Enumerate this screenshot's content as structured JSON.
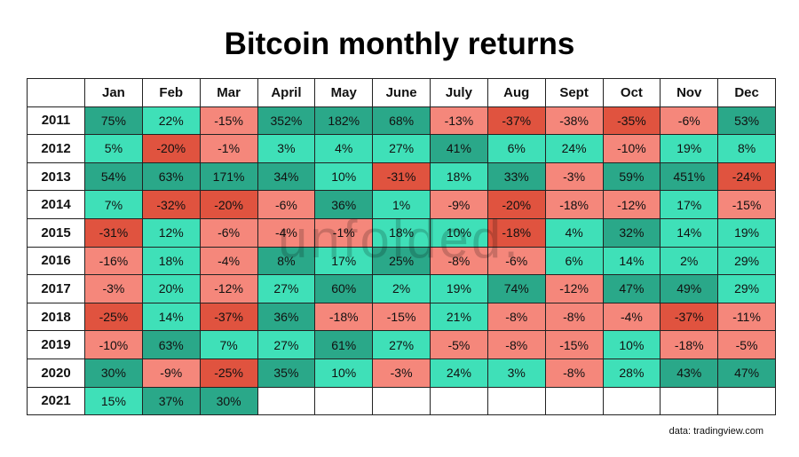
{
  "header": {
    "title": "Bitcoin monthly returns"
  },
  "table": {
    "columns": [
      "Jan",
      "Feb",
      "Mar",
      "April",
      "May",
      "June",
      "July",
      "Aug",
      "Sept",
      "Oct",
      "Nov",
      "Dec"
    ],
    "rows": [
      {
        "year": "2011",
        "cells": [
          "75%",
          "22%",
          "-15%",
          "352%",
          "182%",
          "68%",
          "-13%",
          "-37%",
          "-38%",
          "-35%",
          "-6%",
          "53%"
        ],
        "colors": [
          "#2aa889",
          "#3fe0b8",
          "#f5877b",
          "#2aa889",
          "#2aa889",
          "#2aa889",
          "#f5877b",
          "#e0533f",
          "#f5877b",
          "#e0533f",
          "#f5877b",
          "#2aa889"
        ]
      },
      {
        "year": "2012",
        "cells": [
          "5%",
          "-20%",
          "-1%",
          "3%",
          "4%",
          "27%",
          "41%",
          "6%",
          "24%",
          "-10%",
          "19%",
          "8%"
        ],
        "colors": [
          "#3fe0b8",
          "#e0533f",
          "#f5877b",
          "#3fe0b8",
          "#3fe0b8",
          "#3fe0b8",
          "#2aa889",
          "#3fe0b8",
          "#3fe0b8",
          "#f5877b",
          "#3fe0b8",
          "#3fe0b8"
        ]
      },
      {
        "year": "2013",
        "cells": [
          "54%",
          "63%",
          "171%",
          "34%",
          "10%",
          "-31%",
          "18%",
          "33%",
          "-3%",
          "59%",
          "451%",
          "-24%"
        ],
        "colors": [
          "#2aa889",
          "#2aa889",
          "#2aa889",
          "#2aa889",
          "#3fe0b8",
          "#e0533f",
          "#3fe0b8",
          "#2aa889",
          "#f5877b",
          "#2aa889",
          "#2aa889",
          "#e0533f"
        ]
      },
      {
        "year": "2014",
        "cells": [
          "7%",
          "-32%",
          "-20%",
          "-6%",
          "36%",
          "1%",
          "-9%",
          "-20%",
          "-18%",
          "-12%",
          "17%",
          "-15%"
        ],
        "colors": [
          "#3fe0b8",
          "#e0533f",
          "#e0533f",
          "#f5877b",
          "#2aa889",
          "#3fe0b8",
          "#f5877b",
          "#e0533f",
          "#f5877b",
          "#f5877b",
          "#3fe0b8",
          "#f5877b"
        ]
      },
      {
        "year": "2015",
        "cells": [
          "-31%",
          "12%",
          "-6%",
          "-4%",
          "-1%",
          "18%",
          "10%",
          "-18%",
          "4%",
          "32%",
          "14%",
          "19%"
        ],
        "colors": [
          "#e0533f",
          "#3fe0b8",
          "#f5877b",
          "#f5877b",
          "#f5877b",
          "#3fe0b8",
          "#3fe0b8",
          "#e0533f",
          "#3fe0b8",
          "#2aa889",
          "#3fe0b8",
          "#3fe0b8"
        ]
      },
      {
        "year": "2016",
        "cells": [
          "-16%",
          "18%",
          "-4%",
          "8%",
          "17%",
          "25%",
          "-8%",
          "-6%",
          "6%",
          "14%",
          "2%",
          "29%"
        ],
        "colors": [
          "#f5877b",
          "#3fe0b8",
          "#f5877b",
          "#2aa889",
          "#3fe0b8",
          "#2aa889",
          "#f5877b",
          "#f5877b",
          "#3fe0b8",
          "#3fe0b8",
          "#3fe0b8",
          "#3fe0b8"
        ]
      },
      {
        "year": "2017",
        "cells": [
          "-3%",
          "20%",
          "-12%",
          "27%",
          "60%",
          "2%",
          "19%",
          "74%",
          "-12%",
          "47%",
          "49%",
          "29%"
        ],
        "colors": [
          "#f5877b",
          "#3fe0b8",
          "#f5877b",
          "#3fe0b8",
          "#2aa889",
          "#3fe0b8",
          "#3fe0b8",
          "#2aa889",
          "#f5877b",
          "#2aa889",
          "#2aa889",
          "#3fe0b8"
        ]
      },
      {
        "year": "2018",
        "cells": [
          "-25%",
          "14%",
          "-37%",
          "36%",
          "-18%",
          "-15%",
          "21%",
          "-8%",
          "-8%",
          "-4%",
          "-37%",
          "-11%"
        ],
        "colors": [
          "#e0533f",
          "#3fe0b8",
          "#e0533f",
          "#2aa889",
          "#f5877b",
          "#f5877b",
          "#3fe0b8",
          "#f5877b",
          "#f5877b",
          "#f5877b",
          "#e0533f",
          "#f5877b"
        ]
      },
      {
        "year": "2019",
        "cells": [
          "-10%",
          "63%",
          "7%",
          "27%",
          "61%",
          "27%",
          "-5%",
          "-8%",
          "-15%",
          "10%",
          "-18%",
          "-5%"
        ],
        "colors": [
          "#f5877b",
          "#2aa889",
          "#3fe0b8",
          "#3fe0b8",
          "#2aa889",
          "#3fe0b8",
          "#f5877b",
          "#f5877b",
          "#f5877b",
          "#3fe0b8",
          "#f5877b",
          "#f5877b"
        ]
      },
      {
        "year": "2020",
        "cells": [
          "30%",
          "-9%",
          "-25%",
          "35%",
          "10%",
          "-3%",
          "24%",
          "3%",
          "-8%",
          "28%",
          "43%",
          "47%"
        ],
        "colors": [
          "#2aa889",
          "#f5877b",
          "#e0533f",
          "#2aa889",
          "#3fe0b8",
          "#f5877b",
          "#3fe0b8",
          "#3fe0b8",
          "#f5877b",
          "#3fe0b8",
          "#2aa889",
          "#2aa889"
        ]
      },
      {
        "year": "2021",
        "cells": [
          "15%",
          "37%",
          "30%"
        ],
        "colors": [
          "#3fe0b8",
          "#2aa889",
          "#2aa889"
        ]
      }
    ]
  },
  "watermark": "unfolded.",
  "footer": {
    "source": "data: tradingview.com"
  }
}
